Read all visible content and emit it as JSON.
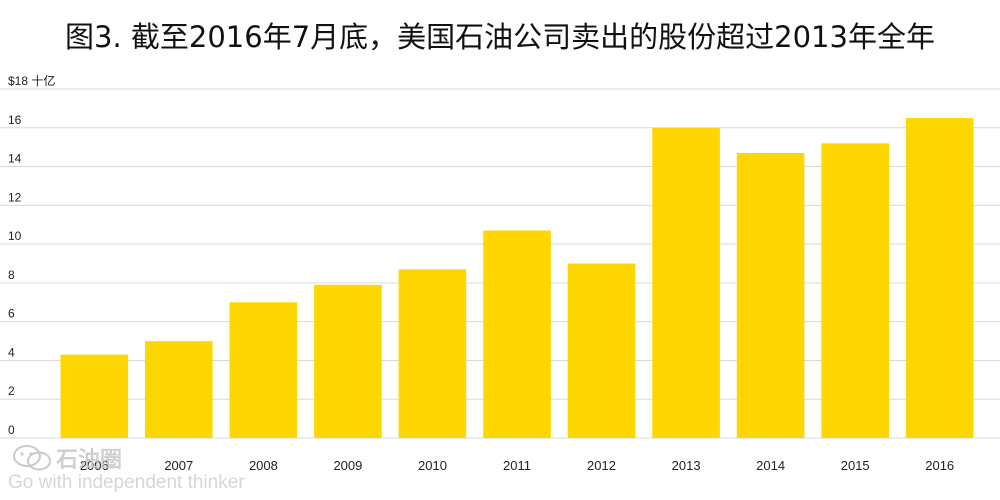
{
  "title": "图3. 截至2016年7月底，美国石油公司卖出的股份超过2013年全年",
  "chart_data": {
    "type": "bar",
    "title": "图3. 截至2016年7月底，美国石油公司卖出的股份超过2013年全年",
    "categories": [
      "2006",
      "2007",
      "2008",
      "2009",
      "2010",
      "2011",
      "2012",
      "2013",
      "2014",
      "2015",
      "2016"
    ],
    "values": [
      4.3,
      5.0,
      7.0,
      7.9,
      8.7,
      10.7,
      9.0,
      16.0,
      14.7,
      15.2,
      16.5
    ],
    "xlabel": "",
    "ylabel": "",
    "y_unit": "$18 十亿",
    "yticks": [
      "0",
      "2",
      "4",
      "6",
      "8",
      "10",
      "12",
      "14",
      "16",
      "$18 十亿"
    ],
    "ylim": [
      0,
      18
    ],
    "grid": true,
    "bar_color": "#FFD700",
    "grid_color": "#d9d9d9"
  },
  "watermark": {
    "name": "石油圈",
    "slogan": "Go with independent thinker"
  }
}
